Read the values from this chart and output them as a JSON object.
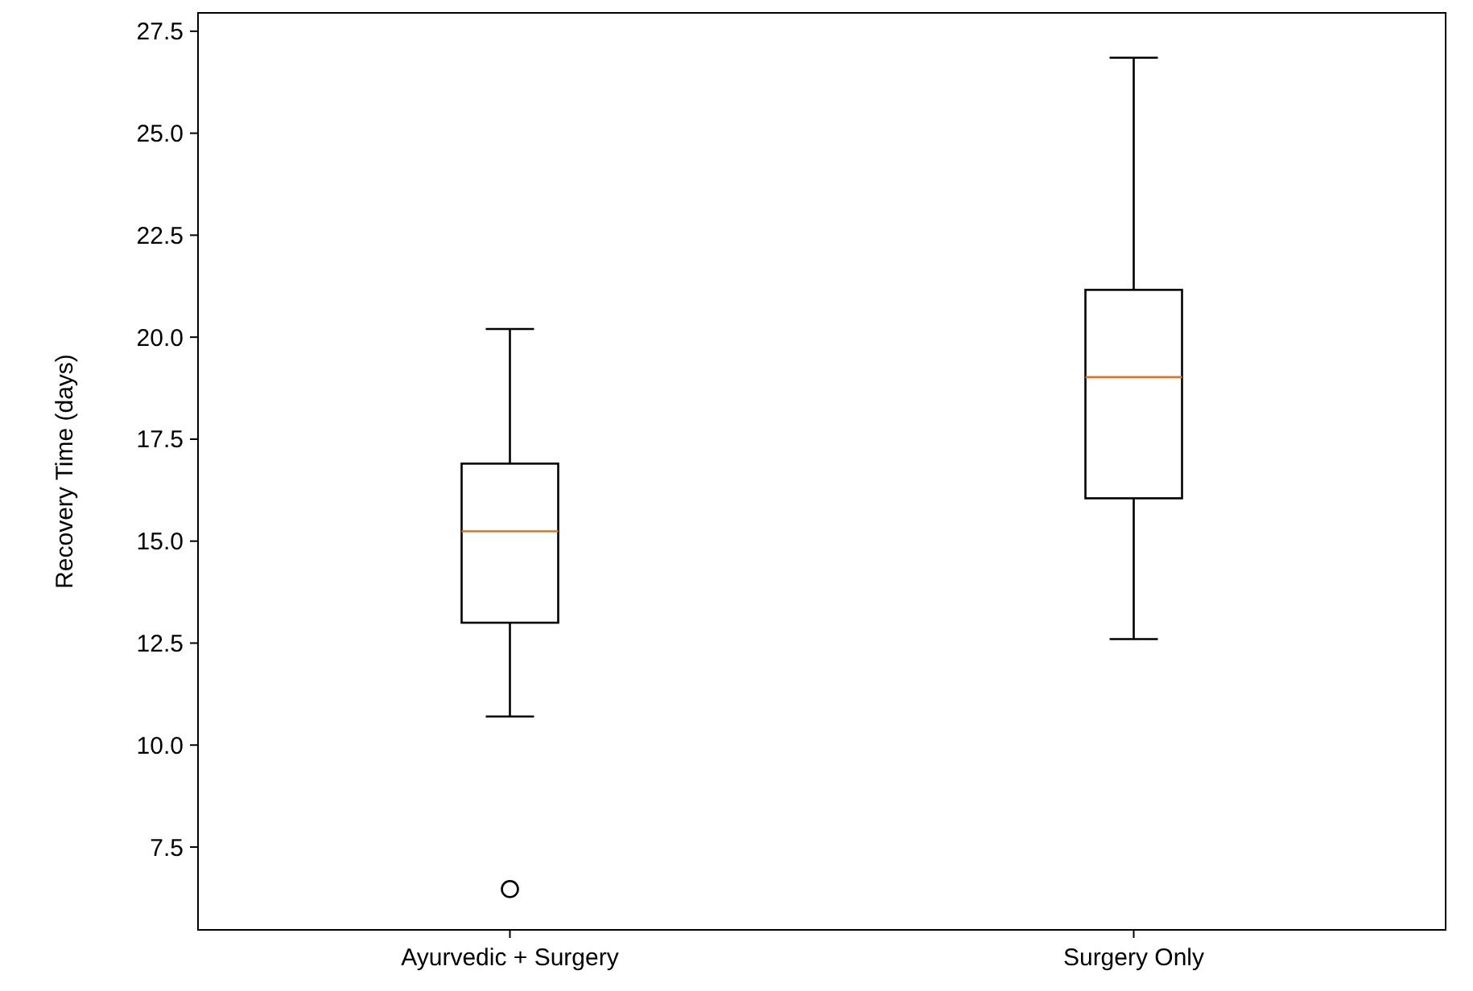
{
  "chart_data": {
    "type": "box",
    "ylabel": "Recovery Time (days)",
    "categories": [
      "Ayurvedic + Surgery",
      "Surgery Only"
    ],
    "boxes": [
      {
        "low": 10.7,
        "q1": 13.0,
        "median": 15.24,
        "q3": 16.9,
        "high": 20.2,
        "outliers": [
          6.47
        ]
      },
      {
        "low": 12.6,
        "q1": 16.05,
        "median": 19.02,
        "q3": 21.16,
        "high": 26.85
      }
    ],
    "color": "#000000",
    "ylim": [
      5.47,
      27.95
    ],
    "yticks": [
      {
        "value": 7.5,
        "label": "7.5"
      },
      {
        "value": 10,
        "label": "10.0"
      },
      {
        "value": 12.5,
        "label": "12.5"
      },
      {
        "value": 15,
        "label": "15.0"
      },
      {
        "value": 17.5,
        "label": "17.5"
      },
      {
        "value": 20,
        "label": "20.0"
      },
      {
        "value": 22.5,
        "label": "22.5"
      },
      {
        "value": 25,
        "label": "25.0"
      },
      {
        "value": 27.5,
        "label": "27.5"
      }
    ],
    "grid": false
  }
}
